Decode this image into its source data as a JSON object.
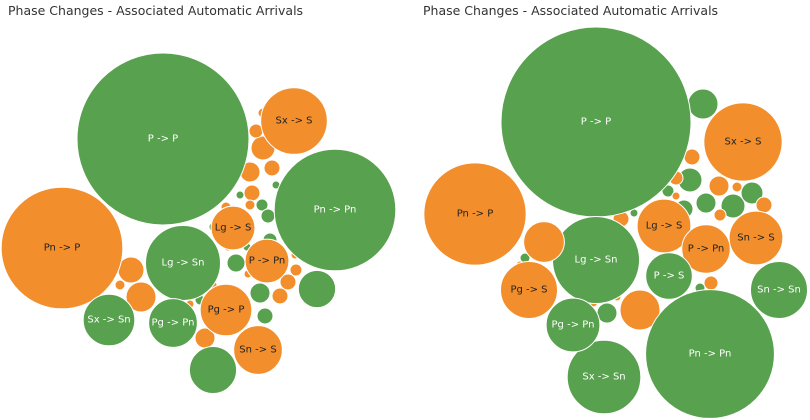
{
  "colors": {
    "green": "#58A14E",
    "orange": "#F28E2B",
    "label_on_green": "#ffffff",
    "label_on_orange": "#222222"
  },
  "chart_data": [
    {
      "type": "bubble",
      "title": "Phase Changes - Associated Automatic Arrivals",
      "bubbles": [
        {
          "label": "P -> P",
          "value": 100,
          "color": "green"
        },
        {
          "label": "Pn -> Pn",
          "value": 50,
          "color": "green"
        },
        {
          "label": "Pn -> P",
          "value": 50,
          "color": "orange"
        },
        {
          "label": "Lg -> Sn",
          "value": 19,
          "color": "green"
        },
        {
          "label": "Sx -> S",
          "value": 15,
          "color": "orange"
        },
        {
          "label": "Pg -> P",
          "value": 9,
          "color": "orange"
        },
        {
          "label": "Sx -> Sn",
          "value": 9,
          "color": "green"
        },
        {
          "label": "Pg -> Pn",
          "value": 8,
          "color": "green"
        },
        {
          "label": "Sn -> S",
          "value": 8,
          "color": "orange"
        },
        {
          "label": "P -> Pn",
          "value": 6.5,
          "color": "orange"
        },
        {
          "label": "Lg -> S",
          "value": 6.5,
          "color": "orange"
        },
        {
          "label": "",
          "value": 7.5,
          "color": "green"
        },
        {
          "label": "",
          "value": 4.7,
          "color": "green"
        }
      ]
    },
    {
      "type": "bubble",
      "title": "Phase Changes - Associated Automatic Arrivals",
      "bubbles": [
        {
          "label": "P -> P",
          "value": 100,
          "color": "green"
        },
        {
          "label": "Pn -> Pn",
          "value": 46,
          "color": "green"
        },
        {
          "label": "Pn -> P",
          "value": 29,
          "color": "orange"
        },
        {
          "label": "Lg -> Sn",
          "value": 21,
          "color": "green"
        },
        {
          "label": "Sx -> S",
          "value": 17,
          "color": "orange"
        },
        {
          "label": "Sx -> Sn",
          "value": 15,
          "color": "green"
        },
        {
          "label": "Sn -> Sn",
          "value": 9,
          "color": "green"
        },
        {
          "label": "Pg -> Pn",
          "value": 8,
          "color": "green"
        },
        {
          "label": "Pg -> S",
          "value": 9,
          "color": "orange"
        },
        {
          "label": "Lg -> S",
          "value": 8,
          "color": "orange"
        },
        {
          "label": "Sn -> S",
          "value": 8,
          "color": "orange"
        },
        {
          "label": "P -> Pn",
          "value": 6.5,
          "color": "orange"
        },
        {
          "label": "P -> S",
          "value": 6,
          "color": "green"
        },
        {
          "label": "",
          "value": 4.6,
          "color": "orange"
        }
      ]
    }
  ]
}
